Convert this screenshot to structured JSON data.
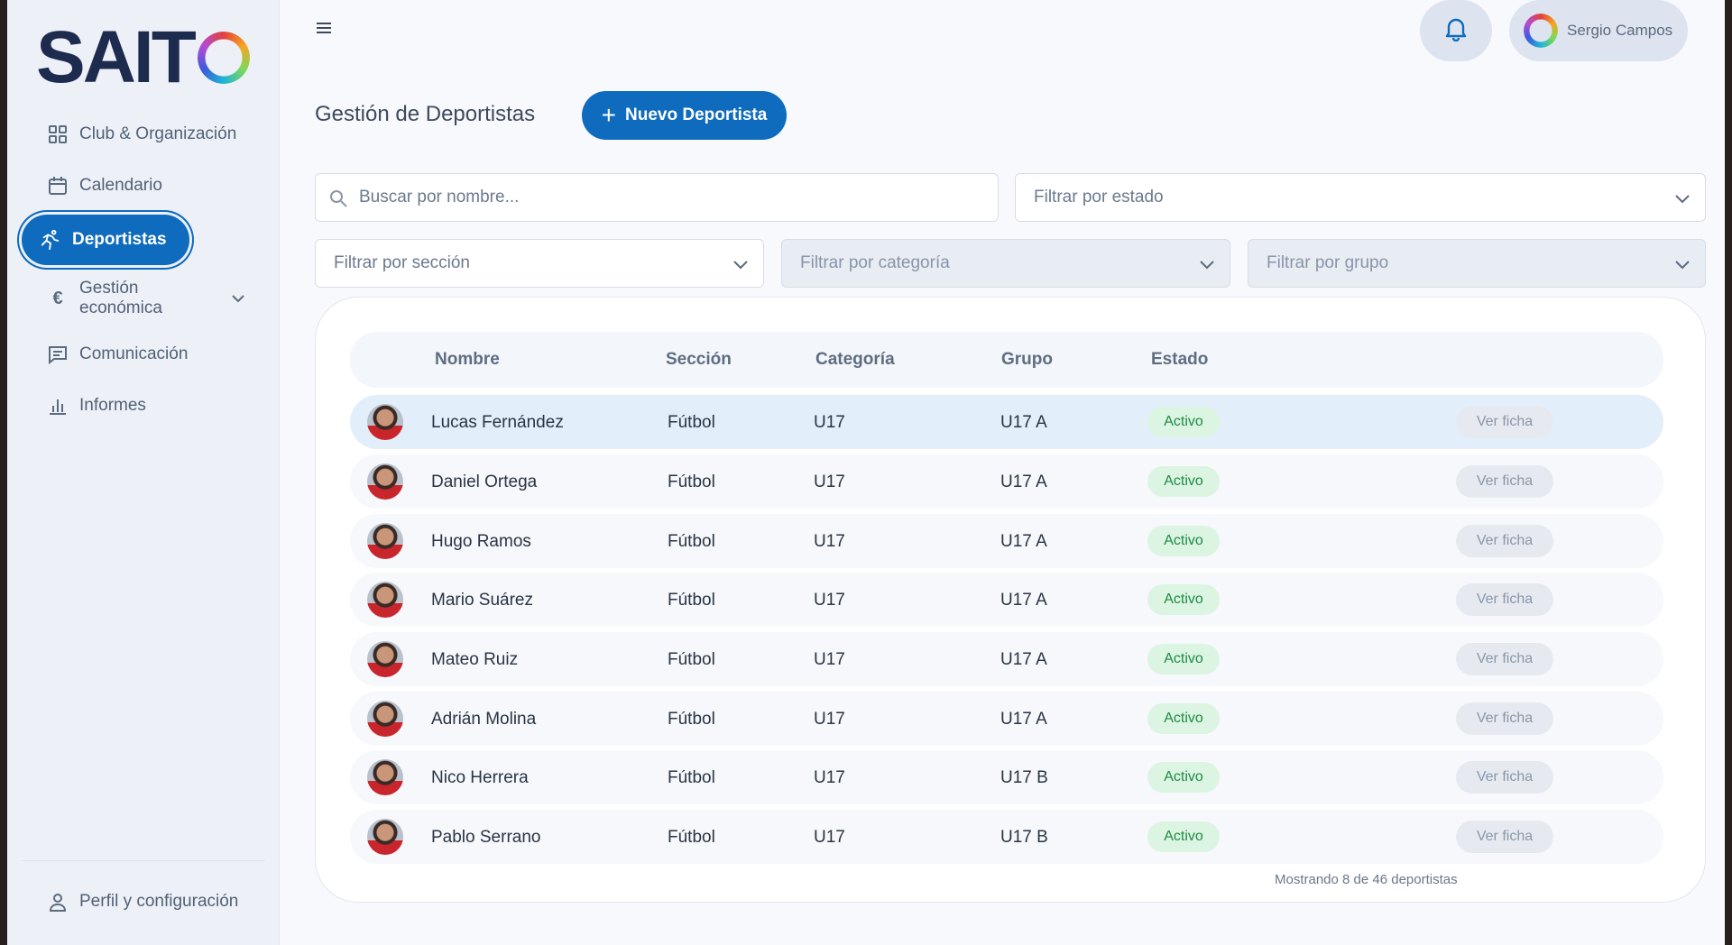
{
  "brand": {
    "logo_text": "SAIT"
  },
  "sidebar": {
    "items": [
      {
        "label": "Club & Organización",
        "icon": "grid-icon"
      },
      {
        "label": "Calendario",
        "icon": "calendar-icon"
      },
      {
        "label": "Deportistas",
        "icon": "runner-icon",
        "active": true
      },
      {
        "label": "Gestión económica",
        "icon": "euro-icon",
        "expandable": true
      },
      {
        "label": "Comunicación",
        "icon": "message-icon"
      },
      {
        "label": "Informes",
        "icon": "bar-chart-icon"
      }
    ],
    "profile_label": "Perfil y configuración"
  },
  "topbar": {
    "user_name": "Sergio Campos"
  },
  "header": {
    "title": "Gestión de Deportistas",
    "new_button": "Nuevo Deportista"
  },
  "filters": {
    "search_placeholder": "Buscar por nombre...",
    "estado": "Filtrar por estado",
    "seccion": "Filtrar por sección",
    "categoria": "Filtrar por categoría",
    "grupo": "Filtrar por grupo"
  },
  "table": {
    "columns": [
      "Nombre",
      "Sección",
      "Categoría",
      "Grupo",
      "Estado"
    ],
    "rows": [
      {
        "nombre": "Lucas Fernández",
        "seccion": "Fútbol",
        "categoria": "U17",
        "grupo": "U17 A",
        "estado": "Activo",
        "action": "Ver ficha"
      },
      {
        "nombre": "Daniel Ortega",
        "seccion": "Fútbol",
        "categoria": "U17",
        "grupo": "U17 A",
        "estado": "Activo",
        "action": "Ver ficha"
      },
      {
        "nombre": "Hugo Ramos",
        "seccion": "Fútbol",
        "categoria": "U17",
        "grupo": "U17 A",
        "estado": "Activo",
        "action": "Ver ficha"
      },
      {
        "nombre": "Mario Suárez",
        "seccion": "Fútbol",
        "categoria": "U17",
        "grupo": "U17 A",
        "estado": "Activo",
        "action": "Ver ficha"
      },
      {
        "nombre": "Mateo Ruiz",
        "seccion": "Fútbol",
        "categoria": "U17",
        "grupo": "U17 A",
        "estado": "Activo",
        "action": "Ver ficha"
      },
      {
        "nombre": "Adrián Molina",
        "seccion": "Fútbol",
        "categoria": "U17",
        "grupo": "U17 A",
        "estado": "Activo",
        "action": "Ver ficha"
      },
      {
        "nombre": "Nico Herrera",
        "seccion": "Fútbol",
        "categoria": "U17",
        "grupo": "U17 B",
        "estado": "Activo",
        "action": "Ver ficha"
      },
      {
        "nombre": "Pablo Serrano",
        "seccion": "Fútbol",
        "categoria": "U17",
        "grupo": "U17 B",
        "estado": "Activo",
        "action": "Ver ficha"
      }
    ],
    "footer": "Mostrando 8 de 46 deportistas"
  },
  "colors": {
    "primary": "#0e6bbd",
    "active_badge_bg": "#dcf5e3",
    "active_badge_text": "#1f8a43"
  }
}
